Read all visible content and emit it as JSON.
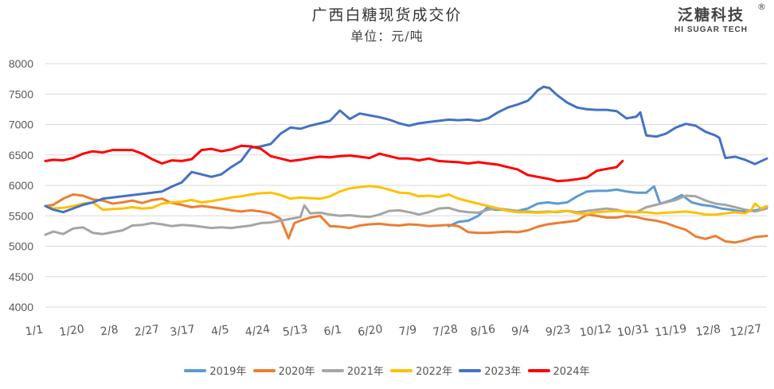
{
  "header": {
    "title": "广西白糖现货成交价",
    "subtitle": "单位：元/吨",
    "logo_cn": "泛糖科技",
    "logo_reg": "®",
    "logo_en": "HI SUGAR TECH"
  },
  "chart_data": {
    "type": "line",
    "title": "广西白糖现货成交价",
    "subtitle": "单位：元/吨",
    "xlabel": "",
    "ylabel": "元/吨",
    "xlim": [
      1,
      366
    ],
    "ylim": [
      4000,
      8000
    ],
    "grid": true,
    "legend_position": "bottom",
    "yticks": [
      4000,
      4500,
      5000,
      5500,
      6000,
      6500,
      7000,
      7500,
      8000
    ],
    "xticks": [
      {
        "day": 1,
        "label": "1/1"
      },
      {
        "day": 20,
        "label": "1/20"
      },
      {
        "day": 39,
        "label": "2/8"
      },
      {
        "day": 58,
        "label": "2/27"
      },
      {
        "day": 76,
        "label": "3/17"
      },
      {
        "day": 95,
        "label": "4/5"
      },
      {
        "day": 114,
        "label": "4/24"
      },
      {
        "day": 133,
        "label": "5/13"
      },
      {
        "day": 152,
        "label": "6/1"
      },
      {
        "day": 171,
        "label": "6/20"
      },
      {
        "day": 190,
        "label": "7/9"
      },
      {
        "day": 209,
        "label": "7/28"
      },
      {
        "day": 228,
        "label": "8/16"
      },
      {
        "day": 247,
        "label": "9/4"
      },
      {
        "day": 266,
        "label": "9/23"
      },
      {
        "day": 285,
        "label": "10/12"
      },
      {
        "day": 304,
        "label": "10/31"
      },
      {
        "day": 323,
        "label": "11/19"
      },
      {
        "day": 342,
        "label": "12/8"
      },
      {
        "day": 361,
        "label": "12/27"
      }
    ],
    "series": [
      {
        "name": "2019年",
        "color": "#5B9BD5",
        "x": [
          205,
          210,
          215,
          220,
          225,
          228,
          232,
          236,
          240,
          245,
          250,
          255,
          260,
          265,
          270,
          275,
          280,
          285,
          290,
          295,
          300,
          305,
          308,
          309,
          312,
          318,
          323,
          328,
          333,
          338,
          343,
          348,
          353,
          358,
          362,
          366
        ],
        "y": [
          5330,
          5400,
          5420,
          5500,
          5650,
          5600,
          5600,
          5590,
          5580,
          5620,
          5700,
          5720,
          5700,
          5720,
          5820,
          5900,
          5910,
          5910,
          5930,
          5900,
          5880,
          5880,
          5960,
          5980,
          5700,
          5760,
          5840,
          5720,
          5680,
          5660,
          5620,
          5600,
          5570,
          5580,
          5600,
          5640
        ]
      },
      {
        "name": "2020年",
        "color": "#ED7D31",
        "x": [
          1,
          5,
          10,
          15,
          20,
          25,
          30,
          35,
          40,
          45,
          50,
          55,
          60,
          65,
          70,
          75,
          80,
          85,
          90,
          95,
          100,
          105,
          110,
          115,
          120,
          124,
          127,
          130,
          135,
          140,
          145,
          150,
          155,
          160,
          165,
          170,
          175,
          180,
          185,
          190,
          195,
          200,
          205,
          210,
          215,
          220,
          225,
          230,
          235,
          240,
          245,
          250,
          255,
          260,
          265,
          270,
          275,
          280,
          285,
          290,
          295,
          300,
          305,
          310,
          315,
          320,
          325,
          330,
          335,
          340,
          345,
          350,
          355,
          360,
          366
        ],
        "y": [
          5660,
          5680,
          5780,
          5850,
          5830,
          5770,
          5750,
          5700,
          5720,
          5750,
          5710,
          5760,
          5780,
          5710,
          5680,
          5640,
          5660,
          5640,
          5620,
          5590,
          5570,
          5590,
          5570,
          5540,
          5450,
          5130,
          5380,
          5420,
          5470,
          5500,
          5330,
          5320,
          5300,
          5340,
          5360,
          5370,
          5350,
          5340,
          5360,
          5350,
          5330,
          5340,
          5350,
          5330,
          5230,
          5220,
          5220,
          5230,
          5240,
          5230,
          5260,
          5320,
          5360,
          5380,
          5400,
          5420,
          5520,
          5500,
          5470,
          5470,
          5500,
          5480,
          5440,
          5420,
          5380,
          5320,
          5270,
          5160,
          5120,
          5170,
          5080,
          5060,
          5100,
          5150,
          5170
        ]
      },
      {
        "name": "2021年",
        "color": "#A5A5A5",
        "x": [
          1,
          5,
          10,
          15,
          20,
          25,
          30,
          35,
          40,
          45,
          50,
          55,
          60,
          65,
          70,
          75,
          80,
          85,
          90,
          95,
          100,
          105,
          110,
          115,
          120,
          125,
          130,
          132,
          135,
          140,
          145,
          150,
          155,
          160,
          165,
          170,
          175,
          180,
          185,
          190,
          195,
          200,
          205,
          210,
          215,
          220,
          225,
          230,
          235,
          240,
          245,
          250,
          255,
          260,
          265,
          270,
          275,
          280,
          285,
          290,
          295,
          300,
          305,
          310,
          315,
          320,
          325,
          330,
          335,
          340,
          345,
          350,
          355,
          360,
          366
        ],
        "y": [
          5190,
          5240,
          5200,
          5290,
          5310,
          5220,
          5200,
          5230,
          5260,
          5340,
          5350,
          5380,
          5360,
          5330,
          5350,
          5340,
          5320,
          5300,
          5310,
          5300,
          5320,
          5340,
          5380,
          5390,
          5420,
          5450,
          5480,
          5670,
          5540,
          5550,
          5520,
          5500,
          5510,
          5490,
          5480,
          5520,
          5580,
          5590,
          5560,
          5520,
          5560,
          5620,
          5630,
          5580,
          5560,
          5550,
          5600,
          5620,
          5600,
          5580,
          5570,
          5560,
          5570,
          5560,
          5580,
          5560,
          5580,
          5600,
          5620,
          5600,
          5560,
          5560,
          5640,
          5680,
          5720,
          5760,
          5830,
          5820,
          5750,
          5700,
          5680,
          5640,
          5600,
          5570,
          5620
        ]
      },
      {
        "name": "2022年",
        "color": "#FFC000",
        "x": [
          1,
          5,
          10,
          15,
          20,
          25,
          30,
          35,
          40,
          45,
          50,
          55,
          60,
          65,
          70,
          75,
          80,
          85,
          90,
          95,
          100,
          105,
          110,
          115,
          120,
          125,
          130,
          135,
          140,
          145,
          150,
          155,
          160,
          165,
          170,
          175,
          180,
          185,
          190,
          195,
          200,
          205,
          210,
          215,
          220,
          225,
          230,
          235,
          240,
          245,
          250,
          255,
          260,
          265,
          270,
          275,
          280,
          285,
          290,
          295,
          300,
          305,
          310,
          315,
          320,
          325,
          330,
          335,
          340,
          345,
          350,
          355,
          358,
          360,
          363,
          366
        ],
        "y": [
          5660,
          5620,
          5630,
          5660,
          5700,
          5720,
          5600,
          5610,
          5620,
          5640,
          5620,
          5630,
          5700,
          5720,
          5730,
          5760,
          5720,
          5740,
          5770,
          5800,
          5820,
          5850,
          5870,
          5880,
          5840,
          5780,
          5800,
          5790,
          5780,
          5820,
          5900,
          5950,
          5970,
          5990,
          5970,
          5930,
          5880,
          5870,
          5820,
          5830,
          5810,
          5850,
          5780,
          5740,
          5700,
          5660,
          5620,
          5580,
          5560,
          5560,
          5550,
          5560,
          5570,
          5580,
          5540,
          5530,
          5560,
          5570,
          5580,
          5570,
          5560,
          5560,
          5540,
          5550,
          5560,
          5570,
          5550,
          5520,
          5520,
          5540,
          5560,
          5540,
          5590,
          5700,
          5620,
          5660
        ]
      },
      {
        "name": "2023年",
        "color": "#4472C4",
        "x": [
          1,
          5,
          10,
          15,
          20,
          25,
          30,
          35,
          40,
          45,
          50,
          55,
          60,
          65,
          70,
          75,
          80,
          85,
          90,
          95,
          100,
          105,
          110,
          115,
          120,
          125,
          130,
          135,
          140,
          145,
          150,
          155,
          160,
          165,
          170,
          175,
          180,
          185,
          190,
          195,
          200,
          205,
          210,
          215,
          220,
          225,
          230,
          235,
          240,
          245,
          247,
          250,
          253,
          256,
          260,
          265,
          270,
          275,
          280,
          285,
          290,
          295,
          300,
          302,
          305,
          310,
          315,
          320,
          325,
          330,
          335,
          340,
          342,
          345,
          350,
          355,
          360,
          366
        ],
        "y": [
          5660,
          5600,
          5560,
          5620,
          5680,
          5720,
          5780,
          5800,
          5820,
          5840,
          5860,
          5880,
          5900,
          5980,
          6050,
          6220,
          6180,
          6140,
          6180,
          6300,
          6400,
          6620,
          6640,
          6680,
          6850,
          6950,
          6930,
          6980,
          7020,
          7060,
          7230,
          7090,
          7180,
          7150,
          7120,
          7080,
          7020,
          6980,
          7020,
          7040,
          7060,
          7080,
          7070,
          7080,
          7060,
          7100,
          7200,
          7280,
          7330,
          7390,
          7450,
          7560,
          7620,
          7600,
          7480,
          7360,
          7280,
          7250,
          7240,
          7240,
          7220,
          7100,
          7130,
          7200,
          6820,
          6800,
          6850,
          6950,
          7010,
          6980,
          6880,
          6820,
          6780,
          6450,
          6470,
          6420,
          6350,
          6440
        ]
      },
      {
        "name": "2024年",
        "color": "#FF0000",
        "x": [
          1,
          5,
          10,
          15,
          20,
          25,
          30,
          35,
          40,
          45,
          50,
          55,
          60,
          65,
          70,
          75,
          80,
          85,
          90,
          95,
          100,
          105,
          110,
          115,
          120,
          125,
          130,
          135,
          140,
          145,
          150,
          155,
          160,
          165,
          170,
          175,
          180,
          185,
          190,
          195,
          200,
          205,
          210,
          215,
          220,
          225,
          230,
          235,
          240,
          245,
          250,
          255,
          260,
          265,
          270,
          275,
          280,
          285,
          290,
          293
        ],
        "y": [
          6400,
          6420,
          6410,
          6450,
          6520,
          6560,
          6540,
          6580,
          6580,
          6580,
          6520,
          6430,
          6360,
          6410,
          6400,
          6430,
          6580,
          6600,
          6560,
          6590,
          6650,
          6640,
          6600,
          6480,
          6440,
          6400,
          6420,
          6450,
          6470,
          6460,
          6480,
          6490,
          6470,
          6450,
          6520,
          6480,
          6440,
          6440,
          6410,
          6440,
          6400,
          6390,
          6380,
          6360,
          6380,
          6360,
          6340,
          6300,
          6260,
          6170,
          6140,
          6110,
          6070,
          6080,
          6100,
          6130,
          6240,
          6270,
          6300,
          6400
        ]
      }
    ]
  },
  "legend": [
    {
      "label": "2019年",
      "color": "#5B9BD5"
    },
    {
      "label": "2020年",
      "color": "#ED7D31"
    },
    {
      "label": "2021年",
      "color": "#A5A5A5"
    },
    {
      "label": "2022年",
      "color": "#FFC000"
    },
    {
      "label": "2023年",
      "color": "#4472C4"
    },
    {
      "label": "2024年",
      "color": "#FF0000"
    }
  ]
}
